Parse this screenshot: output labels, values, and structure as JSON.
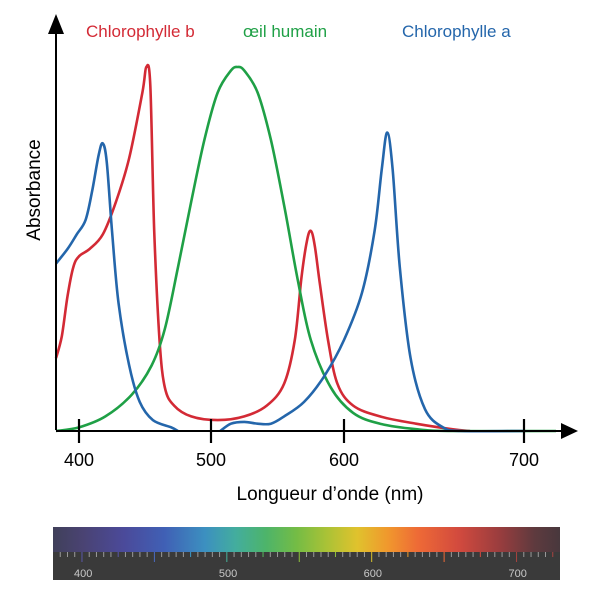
{
  "chart_data": {
    "type": "line",
    "title": "",
    "xlabel": "Longueur d’onde (nm)",
    "ylabel": "Absorbance",
    "xlim": [
      380,
      730
    ],
    "ylim": [
      0,
      1
    ],
    "xticks": [
      400,
      500,
      600,
      700
    ],
    "grid": false,
    "legend": "top, colored labels above chart",
    "series": [
      {
        "name": "Chlorophylle b",
        "color": "#d32a35",
        "points": [
          [
            380,
            0.2
          ],
          [
            385,
            0.26
          ],
          [
            390,
            0.37
          ],
          [
            395,
            0.45
          ],
          [
            400,
            0.48
          ],
          [
            408,
            0.5
          ],
          [
            418,
            0.54
          ],
          [
            428,
            0.63
          ],
          [
            438,
            0.75
          ],
          [
            448,
            0.93
          ],
          [
            451,
            1.0
          ],
          [
            454,
            0.95
          ],
          [
            457,
            0.55
          ],
          [
            461,
            0.25
          ],
          [
            465,
            0.12
          ],
          [
            472,
            0.07
          ],
          [
            485,
            0.04
          ],
          [
            505,
            0.03
          ],
          [
            525,
            0.04
          ],
          [
            542,
            0.07
          ],
          [
            555,
            0.13
          ],
          [
            563,
            0.25
          ],
          [
            568,
            0.42
          ],
          [
            572,
            0.52
          ],
          [
            575,
            0.55
          ],
          [
            578,
            0.51
          ],
          [
            582,
            0.4
          ],
          [
            588,
            0.25
          ],
          [
            595,
            0.13
          ],
          [
            605,
            0.07
          ],
          [
            620,
            0.04
          ],
          [
            640,
            0.02
          ],
          [
            660,
            0.005
          ],
          [
            670,
            0.0
          ]
        ]
      },
      {
        "name": "œil humain",
        "color": "#1fa046",
        "points": [
          [
            380,
            0.0
          ],
          [
            400,
            0.01
          ],
          [
            420,
            0.04
          ],
          [
            440,
            0.1
          ],
          [
            455,
            0.18
          ],
          [
            465,
            0.28
          ],
          [
            475,
            0.45
          ],
          [
            485,
            0.63
          ],
          [
            495,
            0.8
          ],
          [
            505,
            0.93
          ],
          [
            515,
            0.99
          ],
          [
            520,
            1.0
          ],
          [
            525,
            0.99
          ],
          [
            535,
            0.93
          ],
          [
            545,
            0.8
          ],
          [
            555,
            0.62
          ],
          [
            565,
            0.42
          ],
          [
            575,
            0.25
          ],
          [
            590,
            0.12
          ],
          [
            605,
            0.05
          ],
          [
            620,
            0.02
          ],
          [
            640,
            0.005
          ],
          [
            660,
            0.0
          ],
          [
            730,
            0.0
          ]
        ]
      },
      {
        "name": "Chlorophylle a",
        "color": "#2466ab",
        "points": [
          [
            380,
            0.46
          ],
          [
            390,
            0.5
          ],
          [
            398,
            0.54
          ],
          [
            405,
            0.58
          ],
          [
            410,
            0.66
          ],
          [
            415,
            0.76
          ],
          [
            418,
            0.79
          ],
          [
            421,
            0.74
          ],
          [
            425,
            0.55
          ],
          [
            430,
            0.35
          ],
          [
            438,
            0.18
          ],
          [
            446,
            0.08
          ],
          [
            456,
            0.03
          ],
          [
            470,
            0.01
          ],
          [
            475,
            0.0
          ]
        ]
      },
      {
        "name": "Chlorophylle a",
        "color": "#2466ab",
        "points": [
          [
            507,
            0.0
          ],
          [
            515,
            0.02
          ],
          [
            525,
            0.025
          ],
          [
            535,
            0.02
          ],
          [
            545,
            0.02
          ],
          [
            555,
            0.04
          ],
          [
            570,
            0.08
          ],
          [
            585,
            0.15
          ],
          [
            600,
            0.25
          ],
          [
            610,
            0.38
          ],
          [
            617,
            0.55
          ],
          [
            621,
            0.72
          ],
          [
            624,
            0.82
          ],
          [
            627,
            0.72
          ],
          [
            631,
            0.45
          ],
          [
            637,
            0.2
          ],
          [
            645,
            0.06
          ],
          [
            655,
            0.01
          ],
          [
            665,
            0.0
          ],
          [
            700,
            0.0
          ]
        ]
      }
    ],
    "spectrum_bar": {
      "ticks": [
        "400",
        "500",
        "600",
        "700"
      ]
    }
  }
}
